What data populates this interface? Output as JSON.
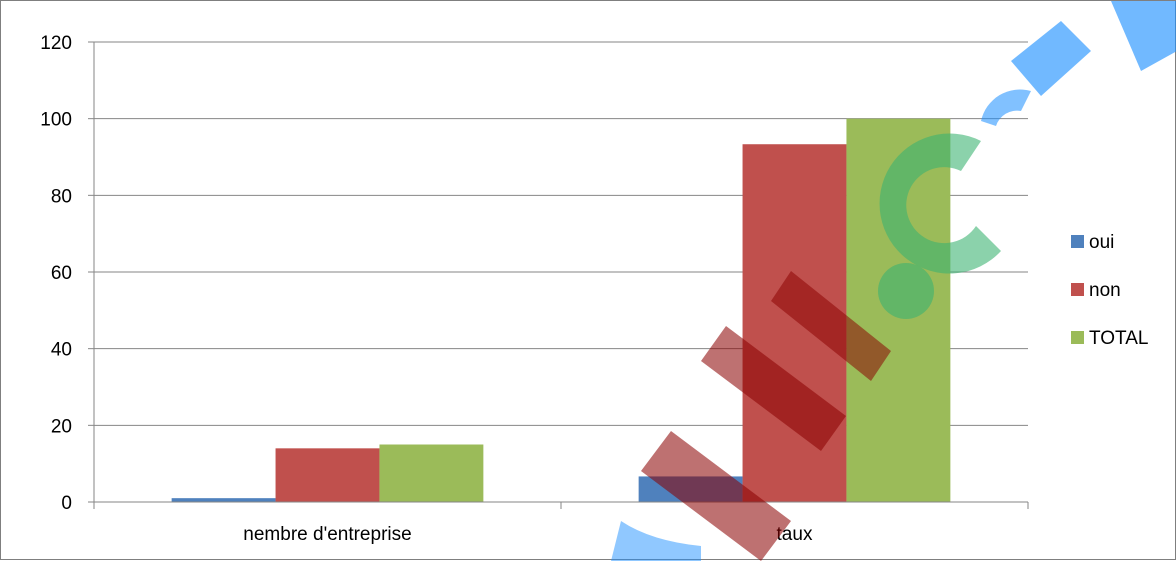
{
  "chart_data": {
    "type": "bar",
    "categories": [
      "nembre d'entreprise",
      "taux"
    ],
    "series": [
      {
        "name": "oui",
        "values": [
          1,
          6.67
        ],
        "color": "#4f81bd"
      },
      {
        "name": "non",
        "values": [
          14,
          93.33
        ],
        "color": "#c0504d"
      },
      {
        "name": "TOTAL",
        "values": [
          15,
          100
        ],
        "color": "#9bbb59"
      }
    ],
    "ylim": [
      0,
      120
    ],
    "yticks": [
      0,
      20,
      40,
      60,
      80,
      100,
      120
    ],
    "grid": true,
    "legend": "right",
    "watermark": {
      "text": "Clic.Tuit.com",
      "colors": [
        "#1e90ff",
        "#3cb371",
        "#8b0000"
      ]
    }
  }
}
